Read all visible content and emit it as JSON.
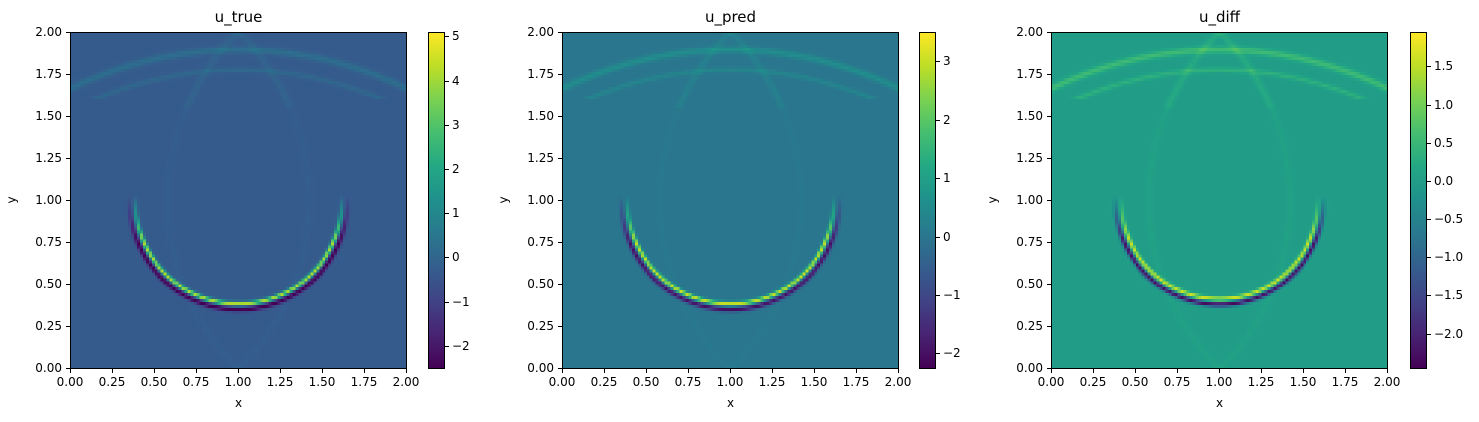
{
  "chart_data": [
    {
      "type": "heatmap",
      "title": "u_true",
      "xlabel": "x",
      "ylabel": "y",
      "xlim": [
        0,
        2
      ],
      "ylim": [
        0,
        2
      ],
      "xticks": [
        "0.00",
        "0.25",
        "0.50",
        "0.75",
        "1.00",
        "1.25",
        "1.50",
        "1.75",
        "2.00"
      ],
      "yticks": [
        "0.00",
        "0.25",
        "0.50",
        "0.75",
        "1.00",
        "1.25",
        "1.50",
        "1.75",
        "2.00"
      ],
      "colormap": "viridis",
      "colorbar": {
        "min": -2.5,
        "max": 5.1,
        "ticks": [
          "−2",
          "−1",
          "0",
          "1",
          "2",
          "3",
          "4",
          "5"
        ],
        "tick_values": [
          -2,
          -1,
          0,
          1,
          2,
          3,
          4,
          5
        ]
      },
      "background_value": -0.3,
      "arc_center": [
        1.0,
        1.0
      ],
      "arc_radius": 0.63,
      "arc_peak": 4.5,
      "arc_trough": -2.3
    },
    {
      "type": "heatmap",
      "title": "u_pred",
      "xlabel": "x",
      "ylabel": "y",
      "xlim": [
        0,
        2
      ],
      "ylim": [
        0,
        2
      ],
      "xticks": [
        "0.00",
        "0.25",
        "0.50",
        "0.75",
        "1.00",
        "1.25",
        "1.50",
        "1.75",
        "2.00"
      ],
      "yticks": [
        "0.00",
        "0.25",
        "0.50",
        "0.75",
        "1.00",
        "1.25",
        "1.50",
        "1.75",
        "2.00"
      ],
      "colormap": "viridis",
      "colorbar": {
        "min": -2.25,
        "max": 3.5,
        "ticks": [
          "−2",
          "−1",
          "0",
          "1",
          "2",
          "3"
        ],
        "tick_values": [
          -2,
          -1,
          0,
          1,
          2,
          3
        ]
      },
      "background_value": 0.0,
      "arc_center": [
        1.0,
        1.0
      ],
      "arc_radius": 0.63,
      "arc_peak": 3.0,
      "arc_trough": -2.0
    },
    {
      "type": "heatmap",
      "title": "u_diff",
      "xlabel": "x",
      "ylabel": "y",
      "xlim": [
        0,
        2
      ],
      "ylim": [
        0,
        2
      ],
      "xticks": [
        "0.00",
        "0.25",
        "0.50",
        "0.75",
        "1.00",
        "1.25",
        "1.50",
        "1.75",
        "2.00"
      ],
      "yticks": [
        "0.00",
        "0.25",
        "0.50",
        "0.75",
        "1.00",
        "1.25",
        "1.50",
        "1.75",
        "2.00"
      ],
      "colormap": "viridis",
      "colorbar": {
        "min": -2.45,
        "max": 1.95,
        "ticks": [
          "−2.0",
          "−1.5",
          "−1.0",
          "−0.5",
          "0.0",
          "0.5",
          "1.0",
          "1.5"
        ],
        "tick_values": [
          -2.0,
          -1.5,
          -1.0,
          -0.5,
          0.0,
          0.5,
          1.0,
          1.5
        ]
      },
      "background_value": 0.0,
      "arc_center": [
        1.0,
        1.0
      ],
      "arc_radius": 0.6,
      "arc_peak": 1.6,
      "arc_trough": -2.3
    }
  ]
}
